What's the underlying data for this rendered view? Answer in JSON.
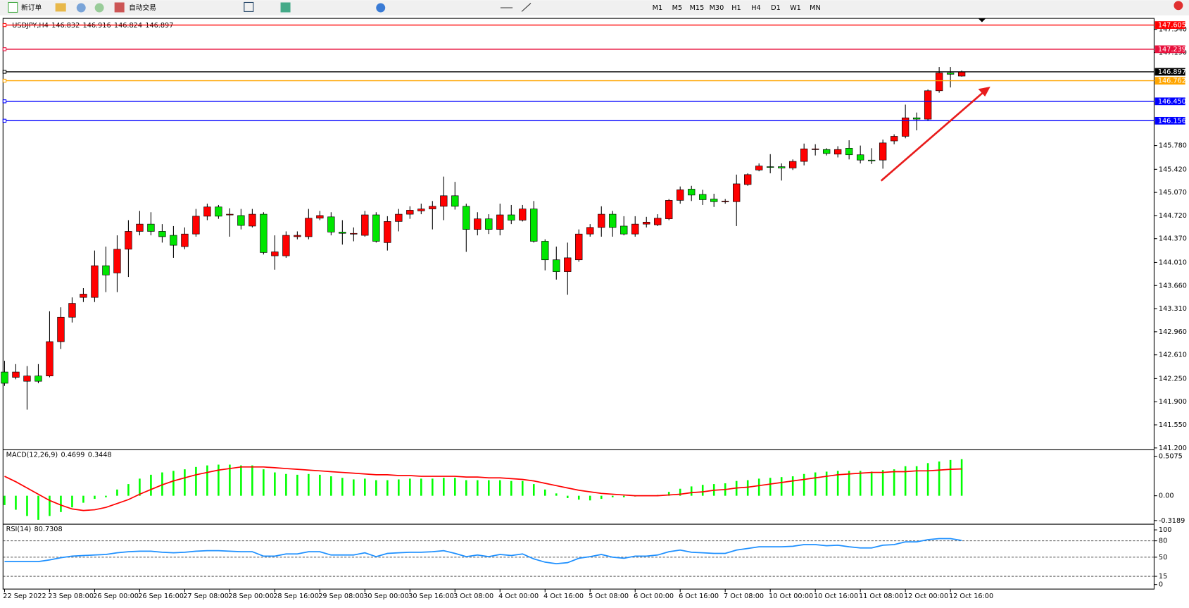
{
  "toolbar": {
    "buttons": [
      "新订单",
      "自动交易"
    ],
    "timeframes": [
      "M1",
      "M5",
      "M15",
      "M30",
      "H1",
      "H4",
      "D1",
      "W1",
      "MN"
    ]
  },
  "chart_data": [
    {
      "type": "candlestick",
      "title": "USDJPY,H4",
      "categories": [
        "22 Sep 2022",
        null,
        null,
        null,
        "23 Sep 08:00",
        null,
        null,
        null,
        "26 Sep 00:00",
        null,
        null,
        null,
        "26 Sep 16:00",
        null,
        null,
        null,
        "27 Sep 08:00",
        null,
        null,
        null,
        "28 Sep 00:00",
        null,
        null,
        null,
        "28 Sep 16:00",
        null,
        null,
        null,
        "29 Sep 08:00",
        null,
        null,
        null,
        "30 Sep 00:00",
        null,
        null,
        null,
        "30 Sep 16:00",
        null,
        null,
        null,
        "3 Oct 08:00",
        null,
        null,
        null,
        "4 Oct 00:00",
        null,
        null,
        null,
        "4 Oct 16:00",
        null,
        null,
        null,
        "5 Oct 08:00",
        null,
        null,
        null,
        "6 Oct 00:00",
        null,
        null,
        null,
        "6 Oct 16:00",
        null,
        null,
        null,
        "7 Oct 08:00",
        null,
        null,
        null,
        "10 Oct 00:00",
        null,
        null,
        null,
        "10 Oct 16:00",
        null,
        null,
        null,
        "11 Oct 08:00",
        null,
        null,
        null,
        "12 Oct 00:00",
        null,
        null,
        null,
        "12 Oct 16:00",
        null
      ],
      "open": [
        142.35,
        142.27,
        142.21,
        142.29,
        142.29,
        142.81,
        143.18,
        143.48,
        143.48,
        143.96,
        143.85,
        144.21,
        144.48,
        144.59,
        144.48,
        144.42,
        144.25,
        144.44,
        144.71,
        144.85,
        144.73,
        144.72,
        144.56,
        144.74,
        144.11,
        144.11,
        144.4,
        144.4,
        144.68,
        144.7,
        144.47,
        144.44,
        144.42,
        144.73,
        144.31,
        144.63,
        144.74,
        144.79,
        144.82,
        144.86,
        145.02,
        144.86,
        144.51,
        144.67,
        144.51,
        144.73,
        144.65,
        144.82,
        144.33,
        144.05,
        143.87,
        144.05,
        144.44,
        144.54,
        144.74,
        144.56,
        144.44,
        144.59,
        144.58,
        144.67,
        144.95,
        145.12,
        145.04,
        144.97,
        144.93,
        144.93,
        145.19,
        145.41,
        145.46,
        145.46,
        145.44,
        145.54,
        145.72,
        145.72,
        145.65,
        145.74,
        145.64,
        145.56,
        145.56,
        145.85,
        145.92,
        146.2,
        146.18,
        146.61,
        146.88,
        146.832
      ],
      "high": [
        142.52,
        142.47,
        142.44,
        142.47,
        143.27,
        143.33,
        143.48,
        143.62,
        144.19,
        144.25,
        144.42,
        144.65,
        144.79,
        144.77,
        144.59,
        144.56,
        144.54,
        144.82,
        144.9,
        144.88,
        144.83,
        144.82,
        144.82,
        144.77,
        144.42,
        144.48,
        144.48,
        144.82,
        144.79,
        144.77,
        144.65,
        144.54,
        144.79,
        144.77,
        144.71,
        144.82,
        144.86,
        144.9,
        144.94,
        145.31,
        145.23,
        144.9,
        144.77,
        144.74,
        144.9,
        144.88,
        144.88,
        144.94,
        144.36,
        144.25,
        144.31,
        144.51,
        144.59,
        144.86,
        144.79,
        144.71,
        144.71,
        144.7,
        144.74,
        144.97,
        145.16,
        145.17,
        145.11,
        145.05,
        144.97,
        145.34,
        145.36,
        145.51,
        145.65,
        145.51,
        145.57,
        145.81,
        145.8,
        145.74,
        145.77,
        145.86,
        145.78,
        145.74,
        145.87,
        145.95,
        146.4,
        146.28,
        146.63,
        146.97,
        146.97,
        146.916
      ],
      "low": [
        142.14,
        142.24,
        141.78,
        142.18,
        142.27,
        142.7,
        143.1,
        143.41,
        143.41,
        143.56,
        143.56,
        143.79,
        144.42,
        144.42,
        144.31,
        144.08,
        144.21,
        144.4,
        144.65,
        144.67,
        144.4,
        144.51,
        144.54,
        144.13,
        143.9,
        144.08,
        144.36,
        144.36,
        144.65,
        144.42,
        144.28,
        144.33,
        144.4,
        144.31,
        144.19,
        144.48,
        144.67,
        144.74,
        144.51,
        144.65,
        144.81,
        144.17,
        144.42,
        144.44,
        144.42,
        144.59,
        144.63,
        144.31,
        143.89,
        143.75,
        143.52,
        144.02,
        144.4,
        144.4,
        144.4,
        144.42,
        144.4,
        144.54,
        144.56,
        144.65,
        144.9,
        144.94,
        144.88,
        144.85,
        144.9,
        144.56,
        145.17,
        145.39,
        145.36,
        145.25,
        145.41,
        145.48,
        145.63,
        145.63,
        145.6,
        145.57,
        145.51,
        145.5,
        145.43,
        145.8,
        145.89,
        146.01,
        146.15,
        146.58,
        146.66,
        146.824
      ],
      "close": [
        142.18,
        142.35,
        142.29,
        142.21,
        142.81,
        143.18,
        143.39,
        143.53,
        143.96,
        143.82,
        144.21,
        144.48,
        144.59,
        144.48,
        144.4,
        144.27,
        144.44,
        144.71,
        144.85,
        144.71,
        144.74,
        144.57,
        144.74,
        144.16,
        144.17,
        144.42,
        144.42,
        144.68,
        144.72,
        144.47,
        144.45,
        144.45,
        144.73,
        144.33,
        144.63,
        144.74,
        144.8,
        144.82,
        144.86,
        145.02,
        144.86,
        144.51,
        144.67,
        144.51,
        144.73,
        144.65,
        144.82,
        144.33,
        144.05,
        143.87,
        144.08,
        144.44,
        144.54,
        144.74,
        144.54,
        144.44,
        144.59,
        144.62,
        144.68,
        144.95,
        145.11,
        145.03,
        144.96,
        144.93,
        144.94,
        145.2,
        145.34,
        145.47,
        145.46,
        145.44,
        145.54,
        145.73,
        145.73,
        145.66,
        145.72,
        145.64,
        145.56,
        145.56,
        145.82,
        145.92,
        146.2,
        146.18,
        146.61,
        146.88,
        146.86,
        146.897
      ],
      "up_color": "#ff0000",
      "down_color": "#00e600",
      "ylim": [
        141.189,
        147.66
      ],
      "yticks": [
        {
          "value": 141.2,
          "label": "141.200"
        },
        {
          "value": 141.55,
          "label": "141.550"
        },
        {
          "value": 141.9,
          "label": "141.900"
        },
        {
          "value": 142.25,
          "label": "142.250"
        },
        {
          "value": 142.61,
          "label": "142.610"
        },
        {
          "value": 142.96,
          "label": "142.960"
        },
        {
          "value": 143.31,
          "label": "143.310"
        },
        {
          "value": 143.66,
          "label": "143.660"
        },
        {
          "value": 144.01,
          "label": "144.010"
        },
        {
          "value": 144.37,
          "label": "144.370"
        },
        {
          "value": 144.72,
          "label": "144.720"
        },
        {
          "value": 145.07,
          "label": "145.070"
        },
        {
          "value": 145.42,
          "label": "145.420"
        },
        {
          "value": 145.78,
          "label": "145.780"
        },
        {
          "value": 147.19,
          "label": "147.190"
        },
        {
          "value": 147.54,
          "label": "147.540"
        }
      ],
      "levels": [
        {
          "value": 147.605,
          "color": "#ff0000"
        },
        {
          "value": 147.239,
          "color": "#e8103c"
        },
        {
          "value": 146.897,
          "color": "#000000"
        },
        {
          "value": 146.762,
          "color": "#ffa500"
        },
        {
          "value": 146.45,
          "label": "146.450",
          "color": "#0000ff"
        },
        {
          "value": 146.156,
          "color": "#0000ff"
        }
      ]
    },
    {
      "type": "macd",
      "title": "MACD(12,26,9)",
      "series": [
        {
          "color": "#00ff00",
          "values": [
            -0.12,
            -0.18,
            -0.26,
            -0.31,
            -0.26,
            -0.21,
            -0.15,
            -0.09,
            -0.04,
            -0.02,
            0.08,
            0.15,
            0.22,
            0.27,
            0.3,
            0.32,
            0.34,
            0.37,
            0.39,
            0.4,
            0.4,
            0.39,
            0.39,
            0.34,
            0.3,
            0.28,
            0.27,
            0.28,
            0.27,
            0.25,
            0.23,
            0.21,
            0.22,
            0.2,
            0.2,
            0.21,
            0.22,
            0.22,
            0.22,
            0.23,
            0.23,
            0.2,
            0.2,
            0.2,
            0.2,
            0.19,
            0.19,
            0.15,
            0.08,
            0.03,
            -0.03,
            -0.05,
            -0.06,
            -0.04,
            -0.02,
            -0.02,
            -0.01,
            0.0,
            0.01,
            0.05,
            0.09,
            0.12,
            0.14,
            0.15,
            0.16,
            0.19,
            0.2,
            0.22,
            0.23,
            0.24,
            0.25,
            0.28,
            0.3,
            0.31,
            0.32,
            0.32,
            0.32,
            0.31,
            0.33,
            0.34,
            0.38,
            0.38,
            0.42,
            0.44,
            0.46,
            0.4699
          ]
        },
        {
          "color": "#ff0000",
          "values": [
            0.25,
            0.18,
            0.1,
            0.02,
            -0.06,
            -0.12,
            -0.17,
            -0.19,
            -0.18,
            -0.15,
            -0.1,
            -0.05,
            0.02,
            0.08,
            0.14,
            0.19,
            0.23,
            0.27,
            0.3,
            0.33,
            0.35,
            0.37,
            0.37,
            0.37,
            0.36,
            0.35,
            0.34,
            0.33,
            0.32,
            0.31,
            0.3,
            0.29,
            0.28,
            0.27,
            0.27,
            0.26,
            0.26,
            0.25,
            0.25,
            0.25,
            0.25,
            0.24,
            0.24,
            0.23,
            0.23,
            0.22,
            0.21,
            0.19,
            0.16,
            0.13,
            0.1,
            0.07,
            0.05,
            0.03,
            0.02,
            0.01,
            0.0,
            0.0,
            0.0,
            0.01,
            0.02,
            0.04,
            0.05,
            0.07,
            0.08,
            0.1,
            0.11,
            0.13,
            0.15,
            0.17,
            0.19,
            0.21,
            0.23,
            0.25,
            0.27,
            0.28,
            0.29,
            0.3,
            0.3,
            0.31,
            0.31,
            0.32,
            0.32,
            0.33,
            0.34,
            0.3448
          ]
        }
      ],
      "ylim": [
        -0.361,
        0.576
      ],
      "yticks": [
        -0.3189,
        {
          "value": 0,
          "label": "0.00"
        },
        0.5075
      ]
    },
    {
      "type": "line",
      "title": "RSI(14)",
      "series": [
        {
          "color": "#1e90ff",
          "values": [
            42,
            42,
            42,
            42,
            45,
            49,
            52,
            53,
            54,
            55,
            58,
            60,
            61,
            61,
            59,
            58,
            59,
            61,
            62,
            62,
            61,
            60,
            60,
            52,
            52,
            56,
            56,
            60,
            60,
            54,
            54,
            54,
            58,
            51,
            57,
            58,
            59,
            59,
            60,
            62,
            57,
            51,
            54,
            51,
            55,
            53,
            56,
            47,
            41,
            38,
            40,
            48,
            51,
            55,
            50,
            48,
            52,
            52,
            54,
            60,
            63,
            59,
            58,
            57,
            57,
            63,
            66,
            69,
            69,
            69,
            70,
            73,
            73,
            71,
            72,
            69,
            67,
            67,
            72,
            73,
            78,
            78,
            82,
            84,
            84,
            80.7308
          ]
        }
      ],
      "ylim": [
        -8.3,
        108.3
      ],
      "yticks": [
        0,
        15,
        50,
        80,
        100
      ]
    }
  ]
}
